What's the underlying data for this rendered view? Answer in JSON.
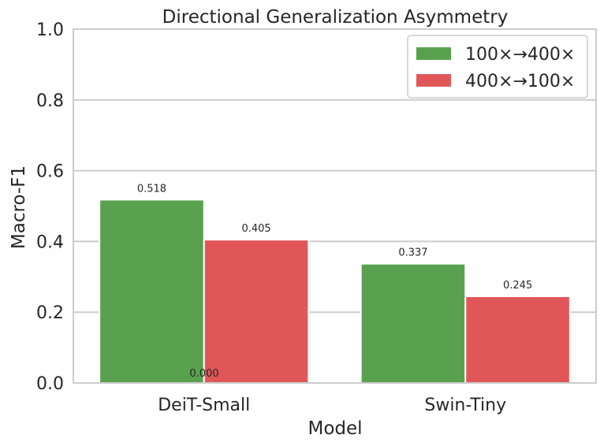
{
  "chart_data": {
    "type": "bar",
    "title": "Directional Generalization Asymmetry",
    "xlabel": "Model",
    "ylabel": "Macro-F1",
    "categories": [
      "DeiT-Small",
      "Swin-Tiny"
    ],
    "series": [
      {
        "name": "100×→400×",
        "values": [
          0.518,
          0.337
        ],
        "labels": [
          "0.518",
          "0.337"
        ],
        "color": "#59a14f"
      },
      {
        "name": "400×→100×",
        "values": [
          0.405,
          0.245
        ],
        "labels": [
          "0.405",
          "0.245"
        ],
        "color": "#e15759"
      }
    ],
    "annotations": [
      {
        "text": "0.000"
      }
    ],
    "ylim": [
      0,
      1.0
    ],
    "yticks": [
      "0.0",
      "0.2",
      "0.4",
      "0.6",
      "0.8",
      "1.0"
    ],
    "grid": true,
    "legend_position": "top-right"
  }
}
